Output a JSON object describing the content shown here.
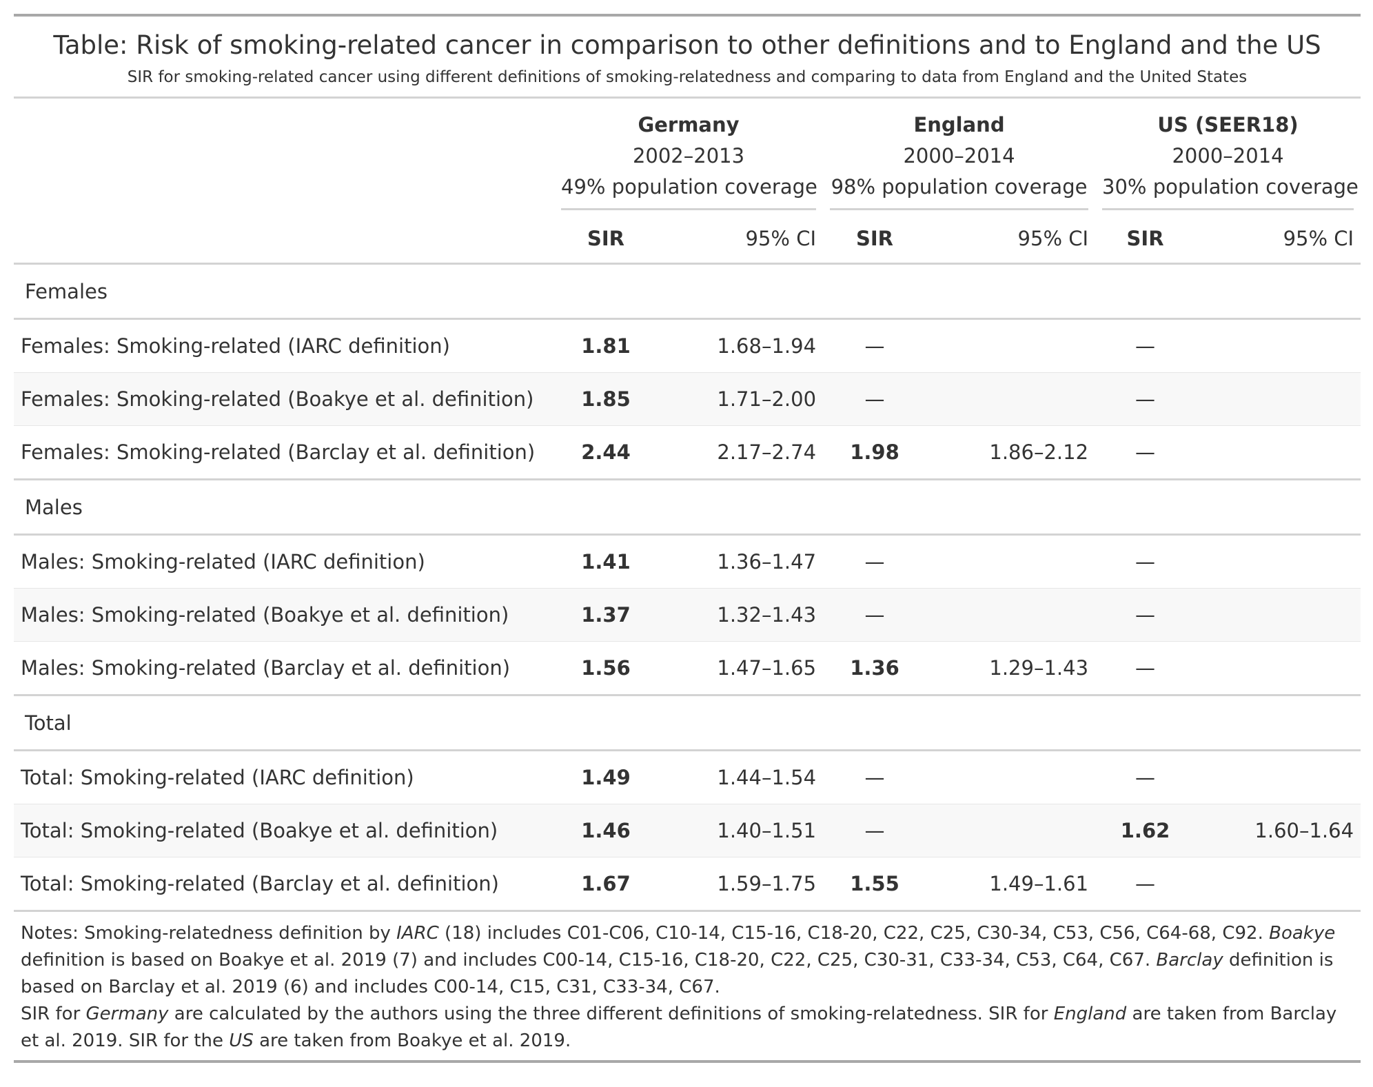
{
  "heading": {
    "title": "Table: Risk of smoking-related cancer in comparison to other definitions and to England and the US",
    "subtitle": "SIR for smoking-related cancer using different definitions of smoking-relatedness and comparing to data from England and the United States"
  },
  "spanners": [
    {
      "name": "Germany",
      "period": "2002–2013",
      "coverage": "49% population coverage"
    },
    {
      "name": "England",
      "period": "2000–2014",
      "coverage": "98% population coverage"
    },
    {
      "name": "US (SEER18)",
      "period": "2000–2014",
      "coverage": "30% population coverage"
    }
  ],
  "columns": {
    "sir": "SIR",
    "ci": "95% CI"
  },
  "groups": [
    {
      "label": "Females",
      "rows": [
        {
          "label": "Females: Smoking-related (IARC definition)",
          "de_sir": "1.81",
          "de_ci": "1.68–1.94",
          "en_sir": "—",
          "en_ci": "",
          "us_sir": "—",
          "us_ci": ""
        },
        {
          "label": "Females: Smoking-related (Boakye et al. definition)",
          "de_sir": "1.85",
          "de_ci": "1.71–2.00",
          "en_sir": "—",
          "en_ci": "",
          "us_sir": "—",
          "us_ci": ""
        },
        {
          "label": "Females: Smoking-related (Barclay et al. definition)",
          "de_sir": "2.44",
          "de_ci": "2.17–2.74",
          "en_sir": "1.98",
          "en_ci": "1.86–2.12",
          "us_sir": "—",
          "us_ci": ""
        }
      ]
    },
    {
      "label": "Males",
      "rows": [
        {
          "label": "Males: Smoking-related (IARC definition)",
          "de_sir": "1.41",
          "de_ci": "1.36–1.47",
          "en_sir": "—",
          "en_ci": "",
          "us_sir": "—",
          "us_ci": ""
        },
        {
          "label": "Males: Smoking-related (Boakye et al. definition)",
          "de_sir": "1.37",
          "de_ci": "1.32–1.43",
          "en_sir": "—",
          "en_ci": "",
          "us_sir": "—",
          "us_ci": ""
        },
        {
          "label": "Males: Smoking-related (Barclay et al. definition)",
          "de_sir": "1.56",
          "de_ci": "1.47–1.65",
          "en_sir": "1.36",
          "en_ci": "1.29–1.43",
          "us_sir": "—",
          "us_ci": ""
        }
      ]
    },
    {
      "label": "Total",
      "rows": [
        {
          "label": "Total: Smoking-related (IARC definition)",
          "de_sir": "1.49",
          "de_ci": "1.44–1.54",
          "en_sir": "—",
          "en_ci": "",
          "us_sir": "—",
          "us_ci": ""
        },
        {
          "label": "Total: Smoking-related (Boakye et al. definition)",
          "de_sir": "1.46",
          "de_ci": "1.40–1.51",
          "en_sir": "—",
          "en_ci": "",
          "us_sir": "1.62",
          "us_ci": "1.60–1.64"
        },
        {
          "label": "Total: Smoking-related (Barclay et al. definition)",
          "de_sir": "1.67",
          "de_ci": "1.59–1.75",
          "en_sir": "1.55",
          "en_ci": "1.49–1.61",
          "us_sir": "—",
          "us_ci": ""
        }
      ]
    }
  ],
  "notes": {
    "p1": [
      {
        "t": "Notes: Smoking-relatedness definition by "
      },
      {
        "t": "IARC",
        "i": true
      },
      {
        "t": " (18) includes C01-C06, C10-14, C15-16, C18-20, C22, C25, C30-34, C53, C56, C64-68, C92. "
      },
      {
        "t": "Boakye",
        "i": true
      },
      {
        "t": " definition is based on Boakye et al. 2019 (7) and includes C00-14, C15-16, C18-20, C22, C25, C30-31, C33-34, C53, C64, C67. "
      },
      {
        "t": "Barclay",
        "i": true
      },
      {
        "t": " definition is based on Barclay et al. 2019 (6) and includes C00-14, C15, C31, C33-34, C67."
      }
    ],
    "p2": [
      {
        "t": "SIR for "
      },
      {
        "t": "Germany",
        "i": true
      },
      {
        "t": " are calculated by the authors using the three different definitions of smoking-relatedness. SIR for "
      },
      {
        "t": "England",
        "i": true
      },
      {
        "t": " are taken from Barclay et al. 2019. SIR for the "
      },
      {
        "t": "US",
        "i": true
      },
      {
        "t": " are taken from Boakye et al. 2019."
      }
    ]
  }
}
